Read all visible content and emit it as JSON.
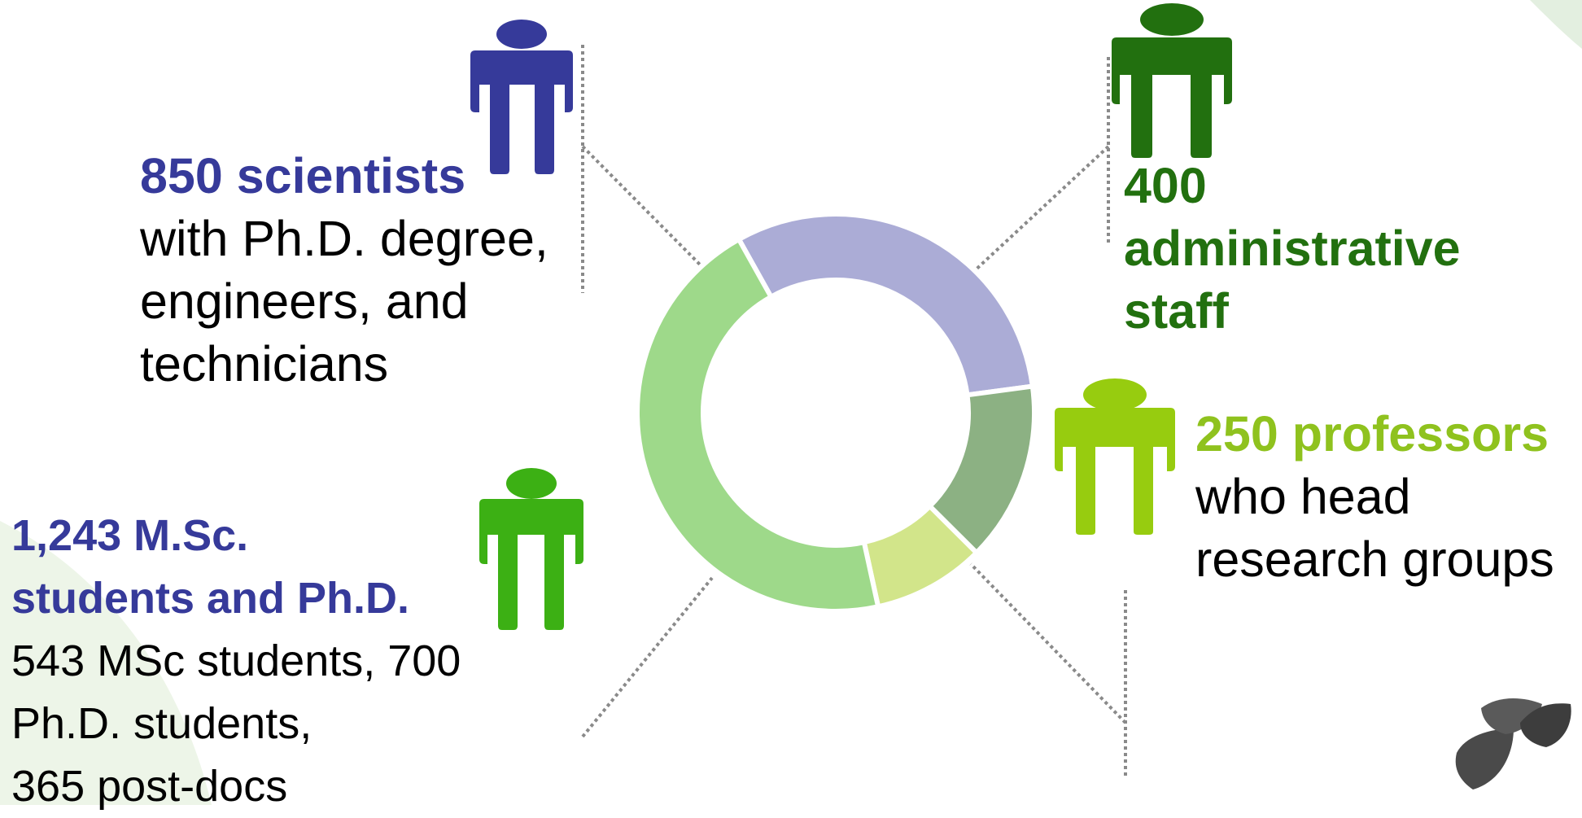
{
  "chart_data": {
    "type": "pie",
    "hole": true,
    "slices": [
      {
        "label": "850 scientists",
        "value": 850,
        "color": "#abacd6"
      },
      {
        "label": "400 administrative staff",
        "value": 400,
        "color": "#8cb183"
      },
      {
        "label": "250 professors",
        "value": 250,
        "color": "#d2e58a"
      },
      {
        "label": "1,243 M.Sc. students and Ph.D.",
        "value": 1243,
        "color": "#9ed98a"
      }
    ]
  },
  "groups": {
    "scientists": {
      "title": "850 scientists",
      "lines": [
        "with Ph.D. degree,",
        "engineers, and",
        "technicians"
      ],
      "color": "#363a9a"
    },
    "admin": {
      "title_lines": [
        "400",
        "administrative",
        "staff"
      ],
      "color": "#22700f"
    },
    "professors": {
      "title": "250 professors",
      "lines": [
        "who head",
        "research groups"
      ],
      "color": "#97cc0f"
    },
    "students": {
      "title_lines": [
        "1,243 M.Sc.",
        "students and Ph.D."
      ],
      "lines": [
        "543 MSc students, 700",
        "Ph.D. students,",
        "365 post-docs"
      ],
      "color": "#3cb014"
    }
  },
  "icons": [
    "person-icon-scientists",
    "person-icon-admin",
    "person-icon-professors",
    "person-icon-students"
  ]
}
